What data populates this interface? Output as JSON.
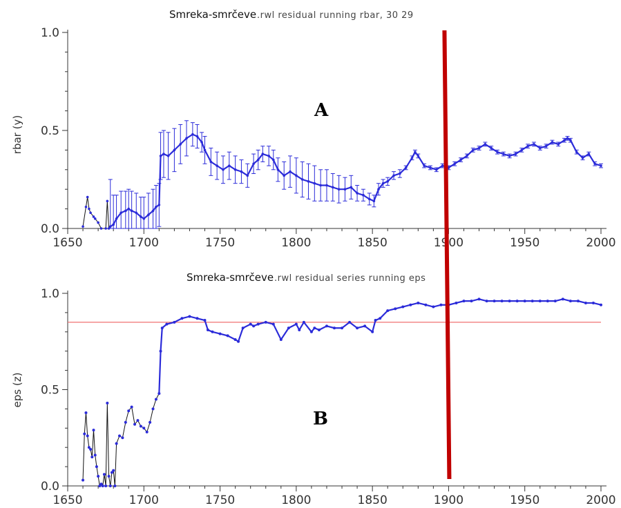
{
  "chart_data": [
    {
      "type": "line",
      "panel_letter": "A",
      "title_main": "Smreka-smrčeve",
      "title_sub": ".rwl residual running rbar,    30  29",
      "xlabel": "",
      "ylabel": "rbar (y)",
      "xlim": [
        1650,
        2005
      ],
      "ylim": [
        0.0,
        1.0
      ],
      "x_ticks": [
        "1650",
        "1700",
        "1750",
        "1800",
        "1850",
        "1900",
        "1950",
        "2000"
      ],
      "y_ticks": [
        "0.0",
        "0.5",
        "1.0"
      ],
      "colors": {
        "series": "#2b2bd9",
        "line_early": "#111111",
        "marker_line": "#c00000"
      },
      "marker_year": 1900,
      "series": [
        {
          "x": [
            1660,
            1662,
            1663,
            1664,
            1665,
            1667,
            1668,
            1670,
            1672,
            1675,
            1676,
            1677,
            1678,
            1680,
            1682,
            1685,
            1688,
            1690,
            1692,
            1695,
            1698,
            1700,
            1703,
            1706,
            1708,
            1710,
            1711,
            1713,
            1716,
            1720,
            1724,
            1728,
            1732,
            1735,
            1738,
            1740,
            1744,
            1748,
            1752,
            1756,
            1760,
            1764,
            1768,
            1772,
            1775,
            1778,
            1782,
            1785,
            1788,
            1792,
            1796,
            1800,
            1804,
            1808,
            1812,
            1816,
            1820,
            1824,
            1828,
            1832,
            1836,
            1840,
            1844,
            1848,
            1851,
            1854,
            1857,
            1860,
            1864,
            1868,
            1872,
            1876,
            1878,
            1880,
            1884,
            1888,
            1892,
            1896,
            1900,
            1904,
            1908,
            1912,
            1916,
            1920,
            1924,
            1928,
            1932,
            1936,
            1940,
            1944,
            1948,
            1952,
            1956,
            1960,
            1964,
            1968,
            1972,
            1976,
            1978,
            1980,
            1984,
            1988,
            1992,
            1996,
            2000
          ],
          "y": [
            0.01,
            0.11,
            0.16,
            0.1,
            0.08,
            0.06,
            0.05,
            0.03,
            0.0,
            0.0,
            0.14,
            0.0,
            0.01,
            0.02,
            0.05,
            0.08,
            0.09,
            0.1,
            0.09,
            0.08,
            0.06,
            0.05,
            0.07,
            0.09,
            0.11,
            0.12,
            0.37,
            0.38,
            0.37,
            0.4,
            0.43,
            0.46,
            0.48,
            0.47,
            0.44,
            0.4,
            0.34,
            0.32,
            0.3,
            0.32,
            0.3,
            0.29,
            0.27,
            0.33,
            0.35,
            0.38,
            0.37,
            0.35,
            0.3,
            0.27,
            0.29,
            0.27,
            0.25,
            0.24,
            0.23,
            0.22,
            0.22,
            0.21,
            0.2,
            0.2,
            0.21,
            0.18,
            0.17,
            0.15,
            0.14,
            0.2,
            0.23,
            0.24,
            0.27,
            0.28,
            0.31,
            0.36,
            0.39,
            0.37,
            0.32,
            0.31,
            0.3,
            0.32,
            0.31,
            0.33,
            0.35,
            0.37,
            0.4,
            0.41,
            0.43,
            0.41,
            0.39,
            0.38,
            0.37,
            0.38,
            0.4,
            0.42,
            0.43,
            0.41,
            0.42,
            0.44,
            0.43,
            0.45,
            0.46,
            0.45,
            0.39,
            0.36,
            0.38,
            0.33,
            0.32
          ],
          "err": [
            0,
            0,
            0,
            0,
            0,
            0,
            0,
            0,
            0,
            0,
            0,
            0,
            0.24,
            0.15,
            0.12,
            0.11,
            0.1,
            0.1,
            0.1,
            0.1,
            0.1,
            0.11,
            0.11,
            0.11,
            0.11,
            0.11,
            0.12,
            0.12,
            0.12,
            0.11,
            0.1,
            0.09,
            0.06,
            0.06,
            0.05,
            0.07,
            0.07,
            0.07,
            0.07,
            0.07,
            0.07,
            0.06,
            0.06,
            0.05,
            0.05,
            0.04,
            0.05,
            0.05,
            0.06,
            0.07,
            0.08,
            0.09,
            0.09,
            0.09,
            0.09,
            0.08,
            0.08,
            0.07,
            0.07,
            0.06,
            0.06,
            0.04,
            0.03,
            0.03,
            0.03,
            0.03,
            0.02,
            0.02,
            0.02,
            0.02,
            0.01,
            0.01,
            0.01,
            0.01,
            0.01,
            0.01,
            0.01,
            0.01,
            0.01,
            0.01,
            0.01,
            0.01,
            0.01,
            0.01,
            0.01,
            0.01,
            0.01,
            0.01,
            0.01,
            0.01,
            0.01,
            0.01,
            0.01,
            0.01,
            0.01,
            0.01,
            0.01,
            0.01,
            0.01,
            0.01,
            0.01,
            0.01,
            0.01,
            0.01,
            0.01
          ]
        }
      ]
    },
    {
      "type": "line",
      "panel_letter": "B",
      "title_main": "Smreka-smrčeve",
      "title_sub": ".rwl residual series running eps",
      "xlabel": "",
      "ylabel": "eps (z)",
      "xlim": [
        1650,
        2005
      ],
      "ylim": [
        0.0,
        1.0
      ],
      "x_ticks": [
        "1650",
        "1700",
        "1750",
        "1800",
        "1850",
        "1900",
        "1950",
        "2000"
      ],
      "y_ticks": [
        "0.0",
        "0.5",
        "1.0"
      ],
      "threshold": 0.85,
      "colors": {
        "series": "#2b2bd9",
        "line_early": "#111111",
        "threshold": "#f07070",
        "marker_line": "#c00000"
      },
      "marker_year": 1900,
      "series": [
        {
          "x": [
            1660,
            1661,
            1662,
            1663,
            1664,
            1665,
            1666,
            1667,
            1668,
            1669,
            1670,
            1671,
            1672,
            1673,
            1674,
            1675,
            1676,
            1677,
            1678,
            1679,
            1680,
            1681,
            1682,
            1684,
            1686,
            1688,
            1690,
            1692,
            1694,
            1696,
            1698,
            1700,
            1702,
            1704,
            1706,
            1708,
            1710,
            1711,
            1712,
            1715,
            1720,
            1725,
            1730,
            1735,
            1740,
            1742,
            1745,
            1750,
            1755,
            1760,
            1762,
            1765,
            1770,
            1772,
            1775,
            1780,
            1785,
            1790,
            1795,
            1800,
            1802,
            1805,
            1810,
            1812,
            1815,
            1820,
            1825,
            1830,
            1835,
            1840,
            1845,
            1850,
            1852,
            1855,
            1860,
            1865,
            1870,
            1875,
            1880,
            1885,
            1890,
            1895,
            1900,
            1905,
            1910,
            1915,
            1920,
            1925,
            1930,
            1935,
            1940,
            1945,
            1950,
            1955,
            1960,
            1965,
            1970,
            1975,
            1980,
            1985,
            1990,
            1995,
            2000
          ],
          "y": [
            0.03,
            0.27,
            0.38,
            0.26,
            0.2,
            0.19,
            0.15,
            0.29,
            0.16,
            0.1,
            0.05,
            0.0,
            0.01,
            0.0,
            0.06,
            0.0,
            0.43,
            0.05,
            0.0,
            0.07,
            0.08,
            0.0,
            0.22,
            0.26,
            0.25,
            0.33,
            0.39,
            0.41,
            0.32,
            0.34,
            0.31,
            0.3,
            0.28,
            0.33,
            0.4,
            0.45,
            0.48,
            0.7,
            0.82,
            0.84,
            0.85,
            0.87,
            0.88,
            0.87,
            0.86,
            0.81,
            0.8,
            0.79,
            0.78,
            0.76,
            0.75,
            0.82,
            0.84,
            0.83,
            0.84,
            0.85,
            0.84,
            0.76,
            0.82,
            0.84,
            0.81,
            0.85,
            0.8,
            0.82,
            0.81,
            0.83,
            0.82,
            0.82,
            0.85,
            0.82,
            0.83,
            0.8,
            0.86,
            0.87,
            0.91,
            0.92,
            0.93,
            0.94,
            0.95,
            0.94,
            0.93,
            0.94,
            0.94,
            0.95,
            0.96,
            0.96,
            0.97,
            0.96,
            0.96,
            0.96,
            0.96,
            0.96,
            0.96,
            0.96,
            0.96,
            0.96,
            0.96,
            0.97,
            0.96,
            0.96,
            0.95,
            0.95,
            0.94
          ]
        }
      ]
    }
  ]
}
